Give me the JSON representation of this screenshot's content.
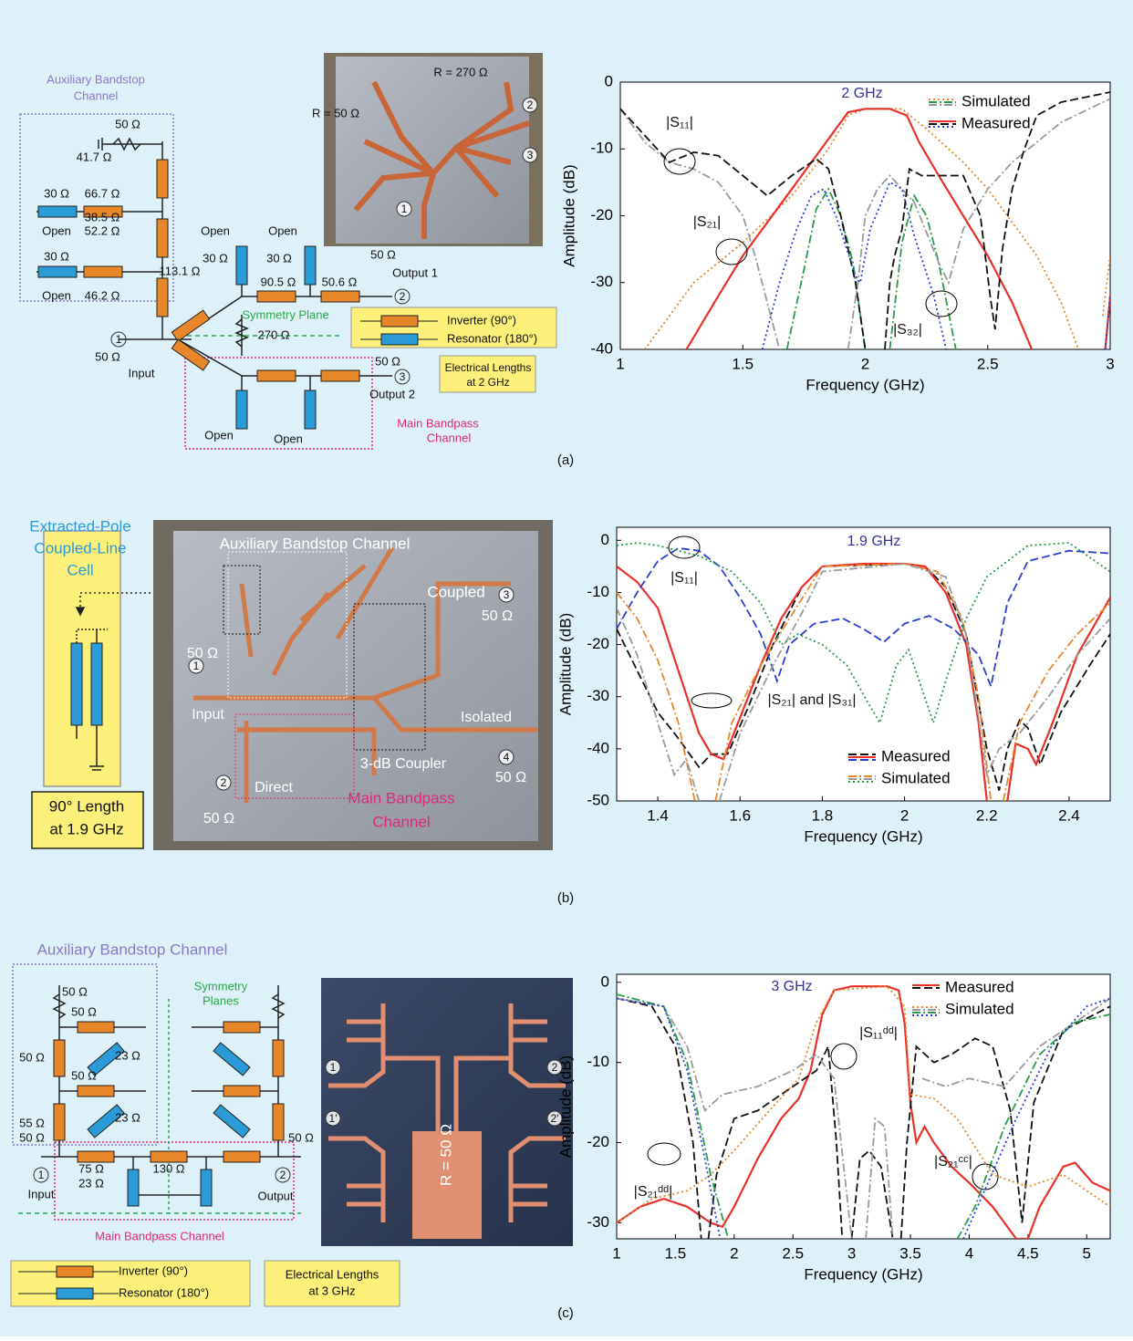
{
  "chart_data": [
    {
      "type": "line",
      "xlabel": "Frequency (GHz)",
      "ylabel": "Amplitude (dB)",
      "xlim": [
        1,
        3
      ],
      "ylim": [
        -40,
        0
      ],
      "xticks": [
        1,
        1.5,
        2,
        2.5,
        3
      ],
      "yticks": [
        0,
        -10,
        -20,
        -30,
        -40
      ],
      "annotations": [
        "2 GHz",
        "|S₁₁|",
        "|S₂₁|",
        "|S₃₂|"
      ],
      "series": [
        {
          "name": "Simulated",
          "color": "#e8862a",
          "dash": "dotted",
          "x": [
            1.1,
            1.2,
            1.3,
            1.5,
            1.7,
            1.85,
            1.93,
            2,
            2.15,
            2.25,
            2.4,
            2.5,
            2.6,
            2.7,
            2.8,
            2.87,
            null,
            2.97,
            3
          ],
          "values": [
            -40,
            -35,
            -30,
            -24,
            -17,
            -10,
            -5,
            -4,
            -4,
            -7,
            -12,
            -16,
            -21,
            -26,
            -33,
            -40,
            null,
            -35,
            -26
          ]
        },
        {
          "name": "Simulated",
          "color": "#2a9a4a",
          "dash": "dashdot",
          "x": [
            1.68,
            1.75,
            1.8,
            1.85,
            1.9,
            1.95,
            2,
            null,
            2.1,
            2.15,
            2.2,
            2.25,
            2.3,
            2.37
          ],
          "values": [
            -40,
            -28,
            -19,
            -16,
            -20,
            -27,
            -40,
            null,
            -40,
            -24,
            -17,
            -20,
            -27,
            -40
          ]
        },
        {
          "name": "Simulated",
          "color": "#9a9a9a",
          "dash": "dashdot",
          "x": [
            1,
            1.1,
            1.2,
            1.3,
            1.4,
            1.5,
            1.55,
            1.6,
            1.65,
            null,
            1.93,
            1.97,
            2,
            2.05,
            2.1,
            2.2,
            2.3,
            2.34,
            2.4,
            2.5,
            2.6,
            2.7,
            2.8,
            3
          ],
          "values": [
            -4,
            -9,
            -12,
            -13,
            -15,
            -20,
            -26,
            -33,
            -40,
            null,
            -40,
            -30,
            -20,
            -16,
            -14,
            -18,
            -27,
            -30,
            -22,
            -16,
            -12,
            -9,
            -6,
            -2.5
          ]
        },
        {
          "name": "Measured",
          "color": "#e8312a",
          "dash": "solid",
          "x": [
            1.27,
            1.4,
            1.5,
            1.6,
            1.7,
            1.8,
            1.88,
            1.93,
            2,
            2.1,
            2.17,
            2.22,
            2.3,
            2.4,
            2.5,
            2.6,
            2.68,
            null,
            2.98,
            3
          ],
          "values": [
            -40,
            -32,
            -26,
            -21,
            -16,
            -11,
            -7,
            -4.5,
            -4,
            -4,
            -5,
            -9,
            -14,
            -20,
            -26,
            -33,
            -40,
            null,
            -40,
            -32
          ]
        },
        {
          "name": "Measured",
          "color": "#111111",
          "dash": "dashed",
          "x": [
            1,
            1.1,
            1.2,
            1.3,
            1.4,
            1.5,
            1.6,
            1.7,
            1.8,
            1.85,
            1.9,
            1.96,
            2,
            null,
            2.08,
            2.1,
            2.12,
            2.15,
            2.18,
            2.23,
            2.3,
            2.4,
            2.47,
            2.51,
            2.53,
            2.56,
            2.6,
            2.65,
            2.7,
            2.8,
            3
          ],
          "values": [
            -4,
            -8,
            -12,
            -10.5,
            -11,
            -14,
            -17,
            -14,
            -11.5,
            -13,
            -20,
            -30,
            -40,
            null,
            -40,
            -30,
            -26,
            -22,
            -13,
            -14,
            -14,
            -14,
            -20,
            -32,
            -37,
            -25,
            -16,
            -10,
            -5,
            -3,
            -1.5
          ]
        },
        {
          "name": "Measured",
          "color": "#2a3fd1",
          "dash": "dotted",
          "x": [
            1.58,
            1.65,
            1.72,
            1.78,
            1.83,
            1.88,
            1.96,
            1.98,
            2.02,
            2.1,
            2.15,
            2.2,
            2.28,
            2.33,
            null,
            2.98,
            3
          ],
          "values": [
            -40,
            -30,
            -22,
            -17,
            -16,
            -20,
            -29,
            -30,
            -22,
            -15,
            -16,
            -23,
            -32,
            -40,
            null,
            -40,
            -32
          ]
        }
      ]
    },
    {
      "type": "line",
      "xlabel": "Frequency (GHz)",
      "ylabel": "Amplitude (dB)",
      "xlim": [
        1.3,
        2.5
      ],
      "ylim": [
        -50,
        2.5
      ],
      "xticks": [
        1.4,
        1.6,
        1.8,
        2,
        2.2,
        2.4
      ],
      "yticks": [
        0,
        -10,
        -20,
        -30,
        -40,
        -50
      ],
      "annotations": [
        "1.9 GHz",
        "|S₁₁|",
        "|S₂₁| and |S₃₁|"
      ],
      "series": [
        {
          "name": "Measured",
          "color": "#111111",
          "dash": "dashed",
          "x": [
            1.3,
            1.35,
            1.4,
            1.45,
            1.5,
            1.53,
            1.57,
            1.62,
            1.68,
            1.75,
            1.8,
            2,
            2.05,
            2.1,
            2.15,
            2.2,
            2.23,
            2.25,
            2.28,
            2.3,
            2.33,
            2.38,
            2.45,
            2.5
          ],
          "values": [
            -17,
            -25,
            -33,
            -38,
            -43.5,
            -41,
            -41,
            -32,
            -20,
            -9,
            -5,
            -4.5,
            -5,
            -9,
            -18,
            -40,
            -48,
            -40,
            -34.5,
            -36,
            -43,
            -33,
            -24,
            -18
          ]
        },
        {
          "name": "Measured",
          "color": "#e8312a",
          "dash": "solid",
          "x": [
            1.3,
            1.35,
            1.4,
            1.45,
            1.5,
            1.53,
            1.56,
            1.6,
            1.65,
            1.7,
            1.75,
            1.8,
            1.9,
            2,
            2.05,
            2.1,
            2.15,
            2.18,
            2.2,
            null,
            2.25,
            2.27,
            2.3,
            2.32,
            2.36,
            2.42,
            2.5
          ],
          "values": [
            -5,
            -8,
            -13,
            -25,
            -37,
            -41,
            -42,
            -34,
            -24,
            -15,
            -9,
            -5,
            -4.5,
            -4.5,
            -5,
            -10,
            -20,
            -35,
            -50,
            null,
            -50,
            -39,
            -40,
            -43,
            -35,
            -22,
            -11
          ]
        },
        {
          "name": "Measured",
          "color": "#2a3fd1",
          "dash": "dashed",
          "x": [
            1.3,
            1.35,
            1.4,
            1.45,
            1.5,
            1.55,
            1.6,
            1.65,
            1.69,
            1.72,
            1.78,
            1.85,
            1.9,
            1.95,
            2,
            2.06,
            2.12,
            2.18,
            2.21,
            2.25,
            2.3,
            2.4,
            2.5
          ],
          "values": [
            -17,
            -10,
            -4,
            -1.5,
            -2,
            -5,
            -11,
            -18,
            -27,
            -20,
            -16,
            -15,
            -17,
            -19.5,
            -16,
            -14.5,
            -17,
            -22,
            -28,
            -12,
            -4,
            -2,
            -2.5
          ]
        },
        {
          "name": "Simulated",
          "color": "#e8862a",
          "dash": "dashdot",
          "x": [
            1.3,
            1.35,
            1.4,
            1.45,
            1.49,
            null,
            1.54,
            1.58,
            1.65,
            1.72,
            1.8,
            2,
            2.08,
            2.14,
            2.18,
            2.21,
            null,
            2.24,
            2.28,
            2.35,
            2.42,
            2.5
          ],
          "values": [
            -10,
            -15,
            -23,
            -35,
            -50,
            null,
            -50,
            -35,
            -24,
            -15,
            -5,
            -4.5,
            -6,
            -15,
            -30,
            -50,
            null,
            -50,
            -35,
            -25,
            -18,
            -12
          ]
        },
        {
          "name": "Simulated",
          "color": "#9a9a9a",
          "dash": "dashdot",
          "x": [
            1.3,
            1.35,
            1.4,
            1.44,
            1.47,
            1.5,
            null,
            1.55,
            1.6,
            1.68,
            1.75,
            1.8,
            2,
            2.1,
            2.15,
            2.2,
            2.23,
            2.28,
            2.35,
            2.42,
            2.5
          ],
          "values": [
            -13,
            -22,
            -35,
            -45,
            -42,
            -50,
            null,
            -50,
            -37,
            -24,
            -14,
            -6,
            -4.5,
            -7,
            -18,
            -45,
            -40,
            -37,
            -30,
            -22,
            -15
          ]
        },
        {
          "name": "Simulated",
          "color": "#2a9a4a",
          "dash": "dotted",
          "x": [
            1.3,
            1.35,
            1.4,
            1.5,
            1.58,
            1.65,
            1.7,
            1.74,
            1.8,
            1.86,
            1.91,
            1.94,
            1.98,
            2.01,
            2.04,
            2.07,
            2.1,
            2.15,
            2.2,
            2.3,
            2.4,
            2.5
          ],
          "values": [
            -1,
            -0.5,
            -1,
            -3,
            -6,
            -12,
            -20,
            -18,
            -20,
            -24,
            -31,
            -35,
            -24,
            -21,
            -28,
            -35,
            -27,
            -15,
            -7,
            -1,
            -0.5,
            -6
          ]
        }
      ]
    },
    {
      "type": "line",
      "xlabel": "Frequency (GHz)",
      "ylabel": "Amplitude (dB)",
      "xlim": [
        1,
        5.2
      ],
      "ylim": [
        -32,
        1
      ],
      "xticks": [
        1,
        1.5,
        2,
        2.5,
        3,
        3.5,
        4,
        4.5,
        5
      ],
      "yticks": [
        0,
        -10,
        -20,
        -30
      ],
      "annotations": [
        "3 GHz",
        "|S₁₁ᵈᵈ|",
        "|S₂₁ᵈᵈ|",
        "|S₂₁ᶜᶜ|"
      ],
      "series": [
        {
          "name": "Measured",
          "color": "#e8312a",
          "dash": "solid",
          "x": [
            1,
            1.2,
            1.4,
            1.6,
            1.8,
            1.9,
            2,
            2.2,
            2.4,
            2.55,
            2.65,
            2.75,
            2.85,
            3,
            3.3,
            3.4,
            3.45,
            3.5,
            3.55,
            3.62,
            3.7,
            3.85,
            4,
            4.2,
            4.4,
            4.5,
            4.6,
            4.8,
            4.9,
            5.05,
            5.2
          ],
          "values": [
            -30,
            -28,
            -27,
            -28,
            -30,
            -30.5,
            -28,
            -22,
            -17,
            -14.5,
            -11,
            -4,
            -1,
            -0.5,
            -0.5,
            -1,
            -5,
            -15,
            -20,
            -18,
            -20,
            -23,
            -25,
            -28,
            -32,
            -32,
            -28,
            -23,
            -22.5,
            -25,
            -26
          ]
        },
        {
          "name": "Measured",
          "color": "#111111",
          "dash": "dashed",
          "x": [
            1,
            1.3,
            1.5,
            1.65,
            1.72,
            null,
            1.78,
            1.85,
            2,
            2.2,
            2.5,
            2.7,
            2.8,
            2.87,
            2.92,
            null,
            3,
            3.07,
            3.15,
            3.25,
            3.35,
            null,
            3.42,
            3.47,
            3.55,
            3.7,
            3.85,
            4.05,
            4.2,
            4.35,
            4.45,
            4.55,
            4.8,
            5.2
          ],
          "values": [
            -2,
            -3,
            -8,
            -20,
            -32,
            null,
            -32,
            -24,
            -17,
            -16,
            -13,
            -11,
            -8,
            -20,
            -32,
            null,
            -32,
            -22,
            -21,
            -23,
            -32,
            null,
            -32,
            -20,
            -8,
            -10,
            -9,
            -7,
            -8,
            -16,
            -30,
            -15,
            -6,
            -3
          ]
        },
        {
          "name": "Simulated",
          "color": "#e8862a",
          "dash": "dotted",
          "x": [
            1,
            1.3,
            1.6,
            1.8,
            2,
            2.3,
            2.55,
            2.7,
            2.85,
            3.3,
            3.45,
            3.5,
            3.7,
            3.9,
            4.2,
            4.5,
            4.8,
            5.2
          ],
          "values": [
            -30,
            -27,
            -26,
            -24,
            -21,
            -16,
            -12,
            -5,
            -1,
            -0.5,
            -3,
            -14,
            -14.5,
            -17,
            -24,
            -25.5,
            -24,
            -28
          ]
        },
        {
          "name": "Simulated",
          "color": "#9a9a9a",
          "dash": "dashdot",
          "x": [
            1,
            1.4,
            1.6,
            1.75,
            1.9,
            2.2,
            2.5,
            2.7,
            2.85,
            3,
            null,
            3.12,
            3.2,
            3.28,
            3.35,
            null,
            3.6,
            3.8,
            4,
            4.3,
            4.6,
            5.2
          ],
          "values": [
            -2,
            -3,
            -8,
            -16,
            -14,
            -13,
            -11,
            -9,
            -12,
            -32,
            null,
            -32,
            -17,
            -18,
            -32,
            null,
            -12,
            -13,
            -12,
            -13,
            -8,
            -2
          ]
        },
        {
          "name": "Simulated",
          "color": "#2a9a4a",
          "dash": "dashdot",
          "x": [
            1,
            1.4,
            1.6,
            1.8,
            1.95,
            null,
            3.9,
            4.05,
            4.3,
            4.6,
            4.9,
            5.2
          ],
          "values": [
            -1.5,
            -3,
            -10,
            -24,
            -32,
            null,
            -32,
            -28,
            -18,
            -9,
            -5,
            -4
          ]
        },
        {
          "name": "Simulated",
          "color": "#2a3fd1",
          "dash": "dotted",
          "x": [
            1,
            1.4,
            1.6,
            1.75,
            1.88,
            null,
            3.95,
            4.1,
            4.4,
            4.7,
            5,
            5.2
          ],
          "values": [
            -2,
            -3,
            -11,
            -22,
            -32,
            null,
            -32,
            -27,
            -17,
            -8,
            -3,
            -2
          ]
        }
      ]
    }
  ],
  "panel_a": {
    "caption": "(a)",
    "labels": [
      "Auxiliary Bandstop",
      "Channel",
      "50 Ω",
      "41.7 Ω",
      "30 Ω",
      "66.7 Ω",
      "Open",
      "38.5 Ω",
      "30 Ω",
      "52.2 Ω",
      "Open",
      "46.2 Ω",
      "50 Ω",
      "Input",
      "113.1 Ω",
      "Open",
      "30 Ω",
      "Open",
      "30 Ω",
      "90.5 Ω",
      "50.6 Ω",
      "50 Ω",
      "Output 1",
      "Symmetry Plane",
      "270 Ω",
      "Inverter (90°)",
      "Resonator (180°)",
      "50 Ω",
      "Output 2",
      "Electrical Lengths",
      "at 2 GHz",
      "Open",
      "Open",
      "Main Bandpass",
      "Channel",
      "R = 50 Ω",
      "R = 270 Ω"
    ],
    "ports": [
      "1",
      "2",
      "3",
      "1",
      "2",
      "3"
    ]
  },
  "panel_b": {
    "caption": "(b)",
    "labels": [
      "Extracted-Pole",
      "Coupled-Line",
      "Cell",
      "90° Length",
      "at 1.9 GHz",
      "Auxiliary Bandstop Channel",
      "Coupled",
      "50 Ω",
      "50 Ω",
      "Input",
      "Isolated",
      "50 Ω",
      "Direct",
      "3-dB Coupler",
      "Main Bandpass",
      "Channel",
      "50 Ω"
    ],
    "ports": [
      "3",
      "1",
      "4",
      "2"
    ]
  },
  "panel_c": {
    "caption": "(c)",
    "labels": [
      "Auxiliary Bandstop Channel",
      "Symmetry",
      "Planes",
      "50 Ω",
      "50 Ω",
      "23 Ω",
      "50 Ω",
      "50 Ω",
      "23 Ω",
      "55 Ω",
      "50 Ω",
      "50 Ω",
      "Input",
      "75 Ω",
      "130 Ω",
      "23 Ω",
      "Output",
      "Main Bandpass Channel",
      "Inverter (90°)",
      "Resonator (180°)",
      "Electrical Lengths",
      "at 3 GHz",
      "R = 50 Ω"
    ],
    "ports": [
      "1",
      "2",
      "1",
      "2",
      "1′",
      "2′"
    ]
  }
}
